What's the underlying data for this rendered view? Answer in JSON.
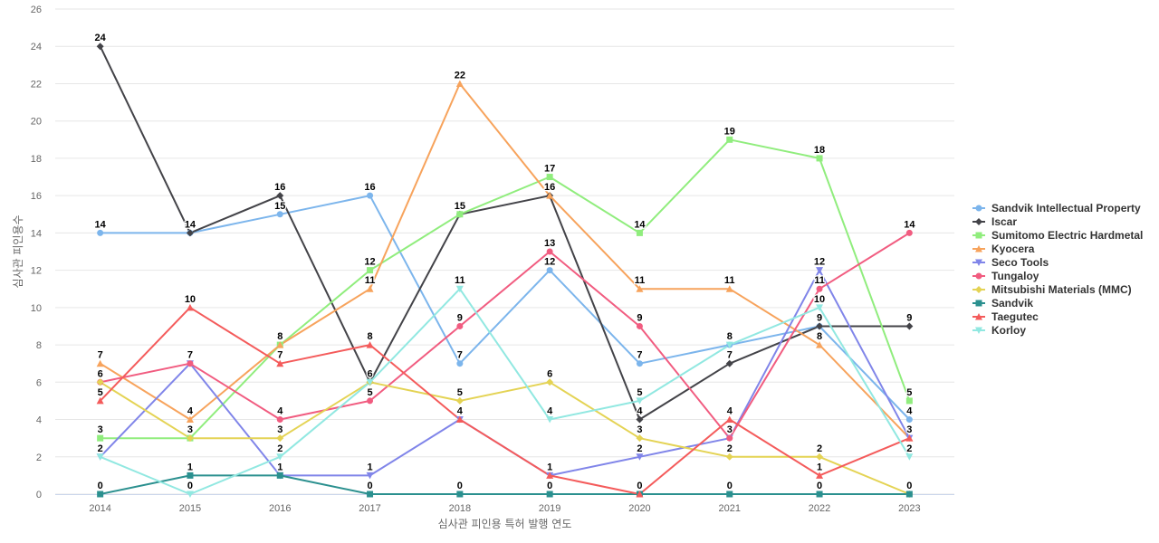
{
  "chart_data": {
    "type": "line",
    "title": "",
    "xlabel": "심사관 피인용 특허 발행 연도",
    "ylabel": "심사관 피인용수",
    "ylim": [
      0,
      26
    ],
    "y_ticks": [
      "0",
      "2",
      "4",
      "6",
      "8",
      "10",
      "12",
      "14",
      "16",
      "18",
      "20",
      "22",
      "24",
      "26"
    ],
    "categories": [
      "2014",
      "2015",
      "2016",
      "2017",
      "2018",
      "2019",
      "2020",
      "2021",
      "2022",
      "2023"
    ],
    "grid": true,
    "legend_position": "right",
    "series": [
      {
        "name": "Sandvik Intellectual Property",
        "color": "#7cb5ec",
        "marker": "circle",
        "values": [
          14,
          14,
          15,
          16,
          7,
          12,
          7,
          8,
          9,
          4
        ]
      },
      {
        "name": "Iscar",
        "color": "#434348",
        "marker": "diamond",
        "values": [
          24,
          14,
          16,
          6,
          15,
          16,
          4,
          7,
          9,
          9
        ]
      },
      {
        "name": "Sumitomo Electric Hardmetal",
        "color": "#90ed7d",
        "marker": "square",
        "values": [
          3,
          3,
          8,
          12,
          15,
          17,
          14,
          19,
          18,
          5
        ]
      },
      {
        "name": "Kyocera",
        "color": "#f7a35c",
        "marker": "triangle",
        "values": [
          7,
          4,
          8,
          11,
          22,
          16,
          11,
          11,
          8,
          3
        ]
      },
      {
        "name": "Seco Tools",
        "color": "#8085e9",
        "marker": "triangle-down",
        "values": [
          2,
          7,
          1,
          1,
          4,
          1,
          2,
          3,
          12,
          3
        ]
      },
      {
        "name": "Tungaloy",
        "color": "#f15c80",
        "marker": "circle",
        "values": [
          6,
          7,
          4,
          5,
          9,
          13,
          9,
          3,
          11,
          14
        ]
      },
      {
        "name": "Mitsubishi Materials (MMC)",
        "color": "#e4d354",
        "marker": "diamond",
        "values": [
          6,
          3,
          3,
          6,
          5,
          6,
          3,
          2,
          2,
          0
        ]
      },
      {
        "name": "Sandvik",
        "color": "#2b908f",
        "marker": "square",
        "values": [
          0,
          1,
          1,
          0,
          0,
          0,
          0,
          0,
          0,
          0
        ]
      },
      {
        "name": "Taegutec",
        "color": "#f45b5b",
        "marker": "triangle",
        "values": [
          5,
          10,
          7,
          8,
          4,
          1,
          0,
          4,
          1,
          3
        ]
      },
      {
        "name": "Korloy",
        "color": "#91e8e1",
        "marker": "triangle-down",
        "values": [
          2,
          0,
          2,
          6,
          11,
          4,
          5,
          8,
          10,
          2
        ]
      }
    ],
    "data_labels": [
      {
        "x": "2014",
        "y": 24,
        "text": "24"
      },
      {
        "x": "2014",
        "y": 14,
        "text": "14"
      },
      {
        "x": "2014",
        "y": 7,
        "text": "7"
      },
      {
        "x": "2014",
        "y": 6,
        "text": "6"
      },
      {
        "x": "2014",
        "y": 5,
        "text": "5"
      },
      {
        "x": "2014",
        "y": 3,
        "text": "3"
      },
      {
        "x": "2014",
        "y": 2,
        "text": "2"
      },
      {
        "x": "2014",
        "y": 0,
        "text": "0"
      },
      {
        "x": "2015",
        "y": 14,
        "text": "14"
      },
      {
        "x": "2015",
        "y": 10,
        "text": "10"
      },
      {
        "x": "2015",
        "y": 7,
        "text": "7"
      },
      {
        "x": "2015",
        "y": 4,
        "text": "4"
      },
      {
        "x": "2015",
        "y": 3,
        "text": "3"
      },
      {
        "x": "2015",
        "y": 1,
        "text": "1"
      },
      {
        "x": "2015",
        "y": 0,
        "text": "0"
      },
      {
        "x": "2016",
        "y": 16,
        "text": "16"
      },
      {
        "x": "2016",
        "y": 15,
        "text": "15"
      },
      {
        "x": "2016",
        "y": 8,
        "text": "8"
      },
      {
        "x": "2016",
        "y": 7,
        "text": "7"
      },
      {
        "x": "2016",
        "y": 4,
        "text": "4"
      },
      {
        "x": "2016",
        "y": 3,
        "text": "3"
      },
      {
        "x": "2016",
        "y": 2,
        "text": "2"
      },
      {
        "x": "2016",
        "y": 1,
        "text": "1"
      },
      {
        "x": "2017",
        "y": 16,
        "text": "16"
      },
      {
        "x": "2017",
        "y": 12,
        "text": "12"
      },
      {
        "x": "2017",
        "y": 11,
        "text": "11"
      },
      {
        "x": "2017",
        "y": 8,
        "text": "8"
      },
      {
        "x": "2017",
        "y": 6,
        "text": "6"
      },
      {
        "x": "2017",
        "y": 5,
        "text": "5"
      },
      {
        "x": "2017",
        "y": 1,
        "text": "1"
      },
      {
        "x": "2017",
        "y": 0,
        "text": "0"
      },
      {
        "x": "2018",
        "y": 22,
        "text": "22"
      },
      {
        "x": "2018",
        "y": 15,
        "text": "15"
      },
      {
        "x": "2018",
        "y": 11,
        "text": "11"
      },
      {
        "x": "2018",
        "y": 9,
        "text": "9"
      },
      {
        "x": "2018",
        "y": 7,
        "text": "7"
      },
      {
        "x": "2018",
        "y": 5,
        "text": "5"
      },
      {
        "x": "2018",
        "y": 4,
        "text": "4"
      },
      {
        "x": "2018",
        "y": 0,
        "text": "0"
      },
      {
        "x": "2019",
        "y": 17,
        "text": "17"
      },
      {
        "x": "2019",
        "y": 16,
        "text": "16"
      },
      {
        "x": "2019",
        "y": 13,
        "text": "13"
      },
      {
        "x": "2019",
        "y": 12,
        "text": "12"
      },
      {
        "x": "2019",
        "y": 6,
        "text": "6"
      },
      {
        "x": "2019",
        "y": 4,
        "text": "4"
      },
      {
        "x": "2019",
        "y": 1,
        "text": "1"
      },
      {
        "x": "2019",
        "y": 0,
        "text": "0"
      },
      {
        "x": "2020",
        "y": 14,
        "text": "14"
      },
      {
        "x": "2020",
        "y": 11,
        "text": "11"
      },
      {
        "x": "2020",
        "y": 9,
        "text": "9"
      },
      {
        "x": "2020",
        "y": 7,
        "text": "7"
      },
      {
        "x": "2020",
        "y": 5,
        "text": "5"
      },
      {
        "x": "2020",
        "y": 4,
        "text": "4"
      },
      {
        "x": "2020",
        "y": 3,
        "text": "3"
      },
      {
        "x": "2020",
        "y": 2,
        "text": "2"
      },
      {
        "x": "2020",
        "y": 0,
        "text": "0"
      },
      {
        "x": "2021",
        "y": 19,
        "text": "19"
      },
      {
        "x": "2021",
        "y": 11,
        "text": "11"
      },
      {
        "x": "2021",
        "y": 8,
        "text": "8"
      },
      {
        "x": "2021",
        "y": 7,
        "text": "7"
      },
      {
        "x": "2021",
        "y": 4,
        "text": "4"
      },
      {
        "x": "2021",
        "y": 3,
        "text": "3"
      },
      {
        "x": "2021",
        "y": 2,
        "text": "2"
      },
      {
        "x": "2021",
        "y": 0,
        "text": "0"
      },
      {
        "x": "2022",
        "y": 18,
        "text": "18"
      },
      {
        "x": "2022",
        "y": 12,
        "text": "12"
      },
      {
        "x": "2022",
        "y": 11,
        "text": "11"
      },
      {
        "x": "2022",
        "y": 10,
        "text": "10"
      },
      {
        "x": "2022",
        "y": 9,
        "text": "9"
      },
      {
        "x": "2022",
        "y": 8,
        "text": "8"
      },
      {
        "x": "2022",
        "y": 2,
        "text": "2"
      },
      {
        "x": "2022",
        "y": 1,
        "text": "1"
      },
      {
        "x": "2022",
        "y": 0,
        "text": "0"
      },
      {
        "x": "2023",
        "y": 14,
        "text": "14"
      },
      {
        "x": "2023",
        "y": 9,
        "text": "9"
      },
      {
        "x": "2023",
        "y": 5,
        "text": "5"
      },
      {
        "x": "2023",
        "y": 4,
        "text": "4"
      },
      {
        "x": "2023",
        "y": 3,
        "text": "3"
      },
      {
        "x": "2023",
        "y": 2,
        "text": "2"
      },
      {
        "x": "2023",
        "y": 0,
        "text": "0"
      }
    ]
  }
}
